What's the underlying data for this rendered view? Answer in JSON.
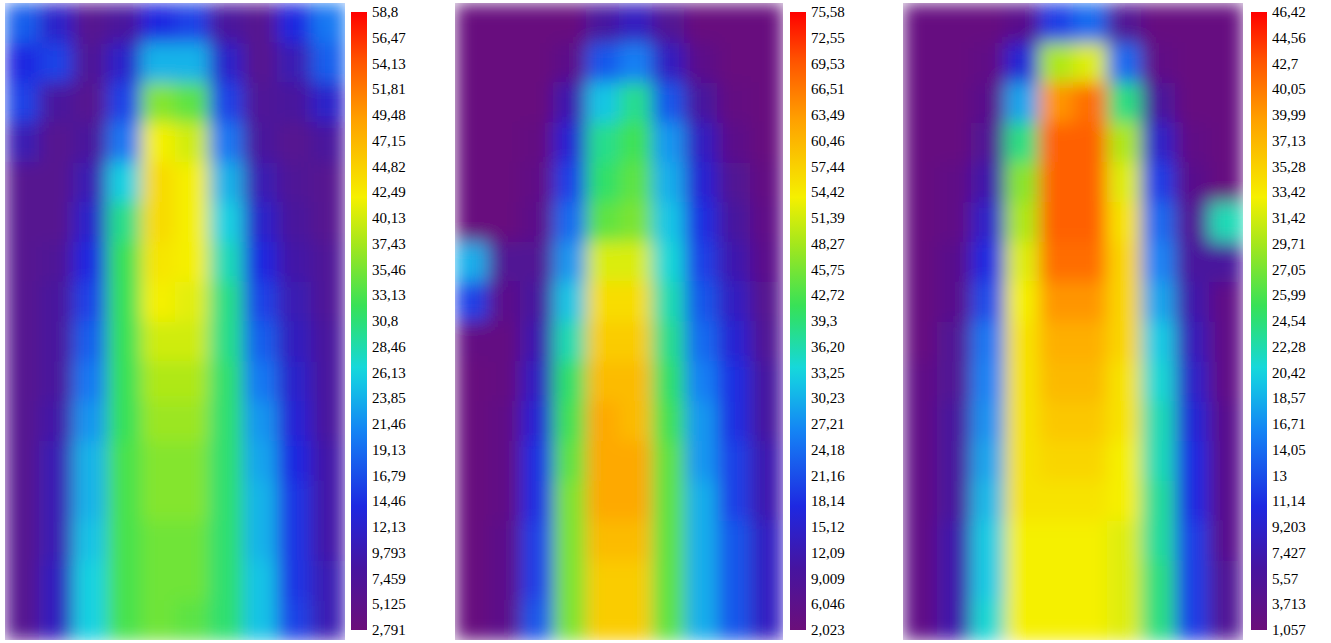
{
  "chart_data": [
    {
      "type": "heatmap",
      "cells": [
        [
          18,
          12,
          6,
          8,
          14,
          16,
          8,
          6,
          14,
          20
        ],
        [
          14,
          16,
          7,
          12,
          24,
          24,
          12,
          6,
          10,
          18
        ],
        [
          16,
          8,
          6,
          16,
          36,
          34,
          16,
          7,
          8,
          12
        ],
        [
          10,
          6,
          8,
          20,
          42,
          40,
          20,
          8,
          6,
          8
        ],
        [
          6,
          6,
          10,
          26,
          44,
          42,
          24,
          10,
          7,
          6
        ],
        [
          6,
          6,
          12,
          30,
          44,
          42,
          26,
          12,
          8,
          6
        ],
        [
          6,
          7,
          14,
          32,
          43,
          42,
          28,
          14,
          9,
          7
        ],
        [
          6,
          8,
          16,
          32,
          42,
          41,
          30,
          16,
          10,
          7
        ],
        [
          6,
          8,
          18,
          32,
          40,
          40,
          30,
          18,
          11,
          8
        ],
        [
          6,
          8,
          20,
          32,
          38,
          38,
          31,
          20,
          12,
          8
        ],
        [
          6,
          9,
          22,
          32,
          37,
          37,
          31,
          22,
          13,
          8
        ],
        [
          6,
          10,
          24,
          33,
          36,
          36,
          31,
          23,
          14,
          9
        ],
        [
          6,
          10,
          24,
          33,
          36,
          36,
          31,
          24,
          15,
          9
        ],
        [
          6,
          10,
          25,
          33,
          35,
          35,
          31,
          24,
          15,
          9
        ],
        [
          6,
          11,
          26,
          33,
          35,
          35,
          31,
          25,
          15,
          10
        ],
        [
          6,
          11,
          26,
          33,
          35,
          34,
          31,
          25,
          16,
          10
        ]
      ],
      "colorbar": {
        "ticks": [
          {
            "value": 58.8,
            "label": "58,8"
          },
          {
            "value": 56.47,
            "label": "56,47"
          },
          {
            "value": 54.13,
            "label": "54,13"
          },
          {
            "value": 51.81,
            "label": "51,81"
          },
          {
            "value": 49.48,
            "label": "49,48"
          },
          {
            "value": 47.15,
            "label": "47,15"
          },
          {
            "value": 44.82,
            "label": "44,82"
          },
          {
            "value": 42.49,
            "label": "42,49"
          },
          {
            "value": 40.13,
            "label": "40,13"
          },
          {
            "value": 37.43,
            "label": "37,43"
          },
          {
            "value": 35.46,
            "label": "35,46"
          },
          {
            "value": 33.13,
            "label": "33,13"
          },
          {
            "value": 30.8,
            "label": "30,8"
          },
          {
            "value": 28.46,
            "label": "28,46"
          },
          {
            "value": 26.13,
            "label": "26,13"
          },
          {
            "value": 23.85,
            "label": "23,85"
          },
          {
            "value": 21.46,
            "label": "21,46"
          },
          {
            "value": 19.13,
            "label": "19,13"
          },
          {
            "value": 16.79,
            "label": "16,79"
          },
          {
            "value": 14.46,
            "label": "14,46"
          },
          {
            "value": 12.13,
            "label": "12,13"
          },
          {
            "value": 9.793,
            "label": "9,793"
          },
          {
            "value": 7.459,
            "label": "7,459"
          },
          {
            "value": 5.125,
            "label": "5,125"
          },
          {
            "value": 2.791,
            "label": "2,791"
          }
        ]
      }
    },
    {
      "type": "heatmap",
      "cells": [
        [
          3,
          3,
          3,
          3,
          10,
          14,
          8,
          3,
          3,
          3
        ],
        [
          3,
          3,
          3,
          6,
          22,
          26,
          14,
          6,
          3,
          3
        ],
        [
          3,
          3,
          3,
          12,
          32,
          38,
          22,
          10,
          4,
          3
        ],
        [
          3,
          3,
          4,
          16,
          38,
          42,
          28,
          14,
          6,
          3
        ],
        [
          3,
          3,
          5,
          20,
          40,
          44,
          30,
          16,
          8,
          4
        ],
        [
          3,
          3,
          6,
          24,
          44,
          46,
          32,
          18,
          10,
          5
        ],
        [
          30,
          8,
          8,
          28,
          52,
          52,
          34,
          20,
          12,
          6
        ],
        [
          20,
          6,
          10,
          32,
          56,
          56,
          36,
          22,
          14,
          7
        ],
        [
          4,
          4,
          12,
          36,
          58,
          58,
          38,
          24,
          16,
          8
        ],
        [
          3,
          4,
          14,
          40,
          60,
          60,
          40,
          26,
          18,
          10
        ],
        [
          3,
          5,
          16,
          42,
          62,
          60,
          42,
          28,
          18,
          10
        ],
        [
          3,
          5,
          18,
          44,
          62,
          62,
          44,
          28,
          20,
          12
        ],
        [
          3,
          5,
          18,
          46,
          62,
          62,
          44,
          30,
          20,
          12
        ],
        [
          3,
          6,
          20,
          46,
          60,
          60,
          44,
          30,
          22,
          14
        ],
        [
          3,
          6,
          20,
          46,
          58,
          58,
          44,
          30,
          22,
          14
        ],
        [
          3,
          6,
          22,
          46,
          58,
          58,
          44,
          30,
          22,
          14
        ]
      ],
      "colorbar": {
        "ticks": [
          {
            "value": 75.58,
            "label": "75,58"
          },
          {
            "value": 72.55,
            "label": "72,55"
          },
          {
            "value": 69.53,
            "label": "69,53"
          },
          {
            "value": 66.51,
            "label": "66,51"
          },
          {
            "value": 63.49,
            "label": "63,49"
          },
          {
            "value": 60.46,
            "label": "60,46"
          },
          {
            "value": 57.44,
            "label": "57,44"
          },
          {
            "value": 54.42,
            "label": "54,42"
          },
          {
            "value": 51.39,
            "label": "51,39"
          },
          {
            "value": 48.27,
            "label": "48,27"
          },
          {
            "value": 45.75,
            "label": "45,75"
          },
          {
            "value": 42.72,
            "label": "42,72"
          },
          {
            "value": 39.3,
            "label": "39,3"
          },
          {
            "value": 36.2,
            "label": "36,20"
          },
          {
            "value": 33.25,
            "label": "33,25"
          },
          {
            "value": 30.23,
            "label": "30,23"
          },
          {
            "value": 27.21,
            "label": "27,21"
          },
          {
            "value": 24.18,
            "label": "24,18"
          },
          {
            "value": 21.16,
            "label": "21,16"
          },
          {
            "value": 18.14,
            "label": "18,14"
          },
          {
            "value": 15.12,
            "label": "15,12"
          },
          {
            "value": 12.09,
            "label": "12,09"
          },
          {
            "value": 9.009,
            "label": "9,009"
          },
          {
            "value": 6.046,
            "label": "6,046"
          },
          {
            "value": 2.023,
            "label": "2,023"
          }
        ]
      }
    },
    {
      "type": "heatmap",
      "cells": [
        [
          2,
          2,
          2,
          4,
          12,
          14,
          5,
          2,
          2,
          2
        ],
        [
          2,
          2,
          3,
          10,
          30,
          32,
          14,
          3,
          2,
          2
        ],
        [
          2,
          2,
          4,
          18,
          40,
          41,
          24,
          6,
          2,
          2
        ],
        [
          2,
          2,
          5,
          24,
          42,
          42,
          30,
          9,
          3,
          2
        ],
        [
          2,
          3,
          7,
          28,
          42,
          42,
          32,
          12,
          4,
          2
        ],
        [
          2,
          3,
          9,
          30,
          42,
          42,
          34,
          14,
          5,
          22
        ],
        [
          2,
          4,
          11,
          32,
          41,
          41,
          35,
          16,
          6,
          6
        ],
        [
          2,
          4,
          13,
          33,
          40,
          40,
          35,
          18,
          7,
          3
        ],
        [
          2,
          5,
          15,
          34,
          38,
          38,
          35,
          20,
          8,
          3
        ],
        [
          3,
          5,
          16,
          34,
          37,
          37,
          34,
          21,
          9,
          3
        ],
        [
          3,
          6,
          17,
          34,
          36,
          36,
          34,
          22,
          10,
          4
        ],
        [
          3,
          6,
          18,
          34,
          35,
          35,
          33,
          22,
          11,
          4
        ],
        [
          3,
          6,
          19,
          34,
          34,
          34,
          33,
          23,
          11,
          4
        ],
        [
          3,
          7,
          20,
          33,
          33,
          33,
          32,
          23,
          12,
          4
        ],
        [
          3,
          7,
          20,
          33,
          33,
          33,
          32,
          24,
          12,
          5
        ],
        [
          3,
          7,
          21,
          33,
          33,
          33,
          32,
          24,
          12,
          5
        ]
      ],
      "colorbar": {
        "ticks": [
          {
            "value": 46.42,
            "label": "46,42"
          },
          {
            "value": 44.56,
            "label": "44,56"
          },
          {
            "value": 42.7,
            "label": "42,7"
          },
          {
            "value": 40.05,
            "label": "40,05"
          },
          {
            "value": 39.99,
            "label": "39,99"
          },
          {
            "value": 37.13,
            "label": "37,13"
          },
          {
            "value": 35.28,
            "label": "35,28"
          },
          {
            "value": 33.42,
            "label": "33,42"
          },
          {
            "value": 31.42,
            "label": "31,42"
          },
          {
            "value": 29.71,
            "label": "29,71"
          },
          {
            "value": 27.05,
            "label": "27,05"
          },
          {
            "value": 25.99,
            "label": "25,99"
          },
          {
            "value": 24.54,
            "label": "24,54"
          },
          {
            "value": 22.28,
            "label": "22,28"
          },
          {
            "value": 20.42,
            "label": "20,42"
          },
          {
            "value": 18.57,
            "label": "18,57"
          },
          {
            "value": 16.71,
            "label": "16,71"
          },
          {
            "value": 14.05,
            "label": "14,05"
          },
          13,
          {
            "value": 11.14,
            "label": "11,14"
          },
          {
            "value": 9.203,
            "label": "9,203"
          },
          {
            "value": 7.427,
            "label": "7,427"
          },
          {
            "value": 5.57,
            "label": "5,57"
          },
          {
            "value": 3.713,
            "label": "3,713"
          },
          {
            "value": 1.057,
            "label": "1,057"
          }
        ]
      }
    }
  ]
}
